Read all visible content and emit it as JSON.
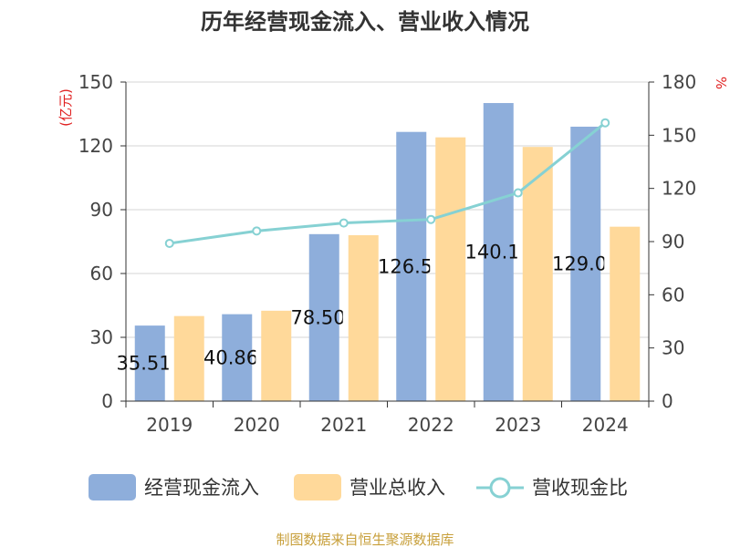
{
  "chart_data": {
    "type": "bar",
    "title": "历年经营现金流入、营业收入情况",
    "categories": [
      "2019",
      "2020",
      "2021",
      "2022",
      "2023",
      "2024"
    ],
    "series": [
      {
        "name": "经营现金流入",
        "axis": "left",
        "color": "#8eaedb",
        "values": [
          35.516,
          40.868,
          78.506,
          126.56,
          140.13,
          129.02
        ],
        "labels": [
          "35.516",
          "40.868",
          "78.506",
          "126.56",
          "140.13",
          "129.02"
        ]
      },
      {
        "name": "营业总收入",
        "axis": "left",
        "color": "#ffd99a",
        "values": [
          40,
          42.5,
          78,
          124,
          119.5,
          82
        ]
      },
      {
        "name": "营收现金比",
        "axis": "right",
        "type": "line",
        "color": "#86d1d3",
        "values": [
          89,
          96,
          100.5,
          102.5,
          117.5,
          157
        ]
      }
    ],
    "left_axis": {
      "unit": "(亿元)",
      "ylim": [
        0,
        150
      ],
      "ticks": [
        "0",
        "30",
        "60",
        "90",
        "120",
        "150"
      ]
    },
    "right_axis": {
      "unit": "%",
      "ylim": [
        0,
        180
      ],
      "ticks": [
        "0",
        "30",
        "60",
        "90",
        "120",
        "150",
        "180"
      ]
    },
    "grid": true,
    "legend_position": "bottom"
  },
  "source": "制图数据来自恒生聚源数据库"
}
